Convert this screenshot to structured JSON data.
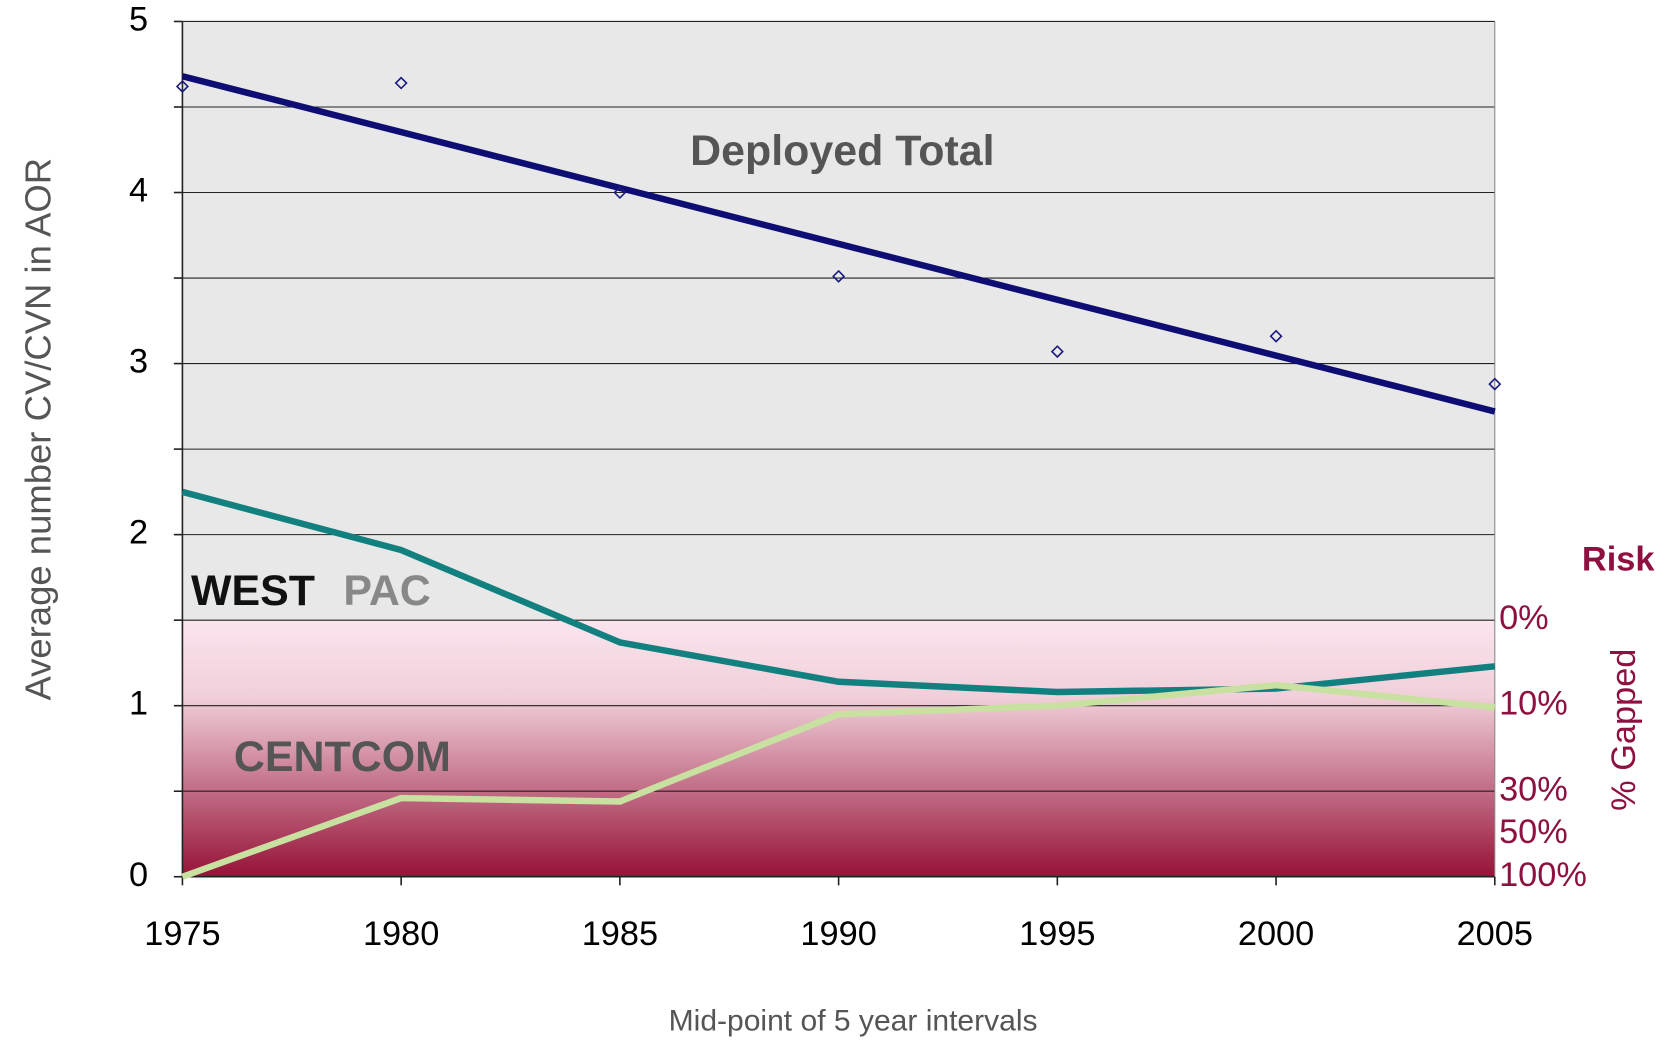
{
  "chart_data": {
    "type": "line",
    "x_label": "Mid-point of 5 year intervals",
    "y_label": "Average number CV/CVN in AOR",
    "y2_label": "% Gapped",
    "risk_title": "Risk",
    "annotations": {
      "deployed": "Deployed Total",
      "west": "WEST",
      "pac": "PAC",
      "centcom": "CENTCOM"
    },
    "x": [
      1975,
      1980,
      1985,
      1990,
      1995,
      2000,
      2005
    ],
    "xlim": [
      1975,
      2005
    ],
    "xticks": [
      1975,
      1980,
      1985,
      1990,
      1995,
      2000,
      2005
    ],
    "ylim": [
      0,
      5
    ],
    "yticks": [
      0,
      1,
      2,
      3,
      4,
      5
    ],
    "minor_yticks": [
      0.5,
      1.5,
      2.5,
      3.5,
      4.5
    ],
    "risk_band": [
      0,
      1.5
    ],
    "risk_ticks": [
      {
        "value": 1.5,
        "label": "0%"
      },
      {
        "value": 1,
        "label": "10%"
      },
      {
        "value": 0.5,
        "label": "30%"
      },
      {
        "value": 0.25,
        "label": "50%"
      },
      {
        "value": 0,
        "label": "100%"
      }
    ],
    "scatter": {
      "color": "#1a1a80",
      "values": [
        4.62,
        4.64,
        4.0,
        3.51,
        3.07,
        3.16,
        2.88
      ]
    },
    "trendline": {
      "color": "#0d0d73",
      "x": [
        1975,
        2005
      ],
      "values": [
        4.68,
        2.72
      ]
    },
    "series": [
      {
        "color": "#138080",
        "values": [
          2.25,
          1.91,
          1.37,
          1.14,
          1.08,
          1.1,
          1.23
        ]
      },
      {
        "color": "#c8e0a0",
        "values": [
          0.0,
          0.46,
          0.44,
          0.95,
          1.0,
          1.12,
          0.99
        ]
      }
    ]
  }
}
